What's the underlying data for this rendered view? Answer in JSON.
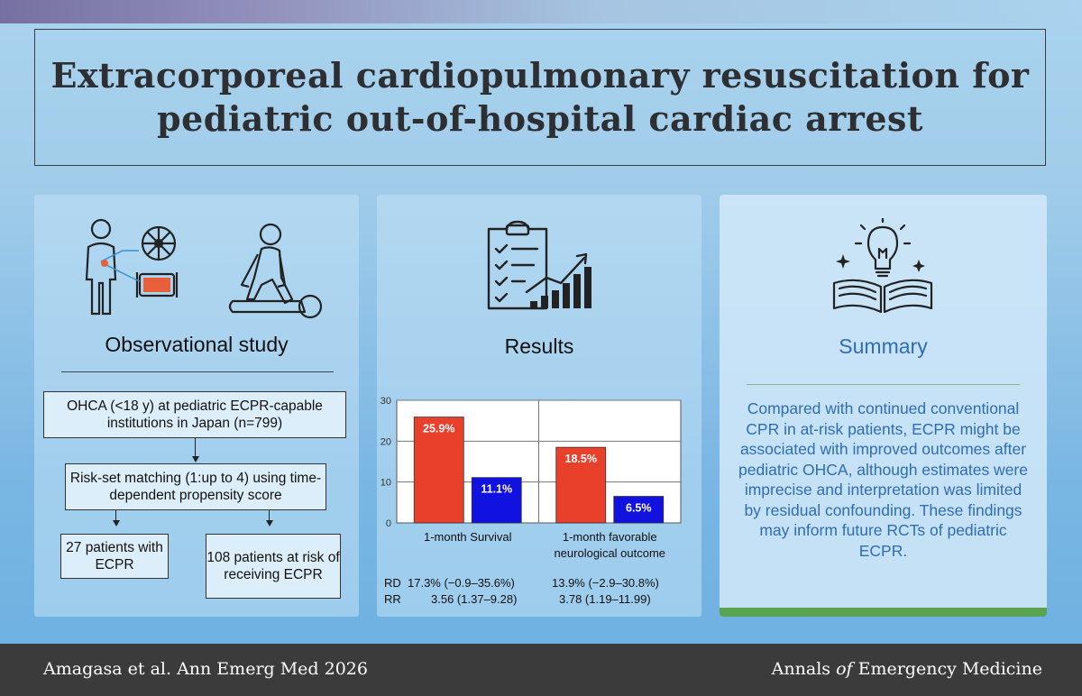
{
  "title": {
    "line1": "Extracorporeal cardiopulmonary resuscitation for",
    "line2": "pediatric out-of-hospital cardiac arrest"
  },
  "study": {
    "heading": "Observational study",
    "box1": "OHCA (<18 y) at pediatric ECPR-capable institutions in Japan (n=799)",
    "box2": "Risk-set matching (1:up to 4) using time-dependent propensity score",
    "box3": "27 patients with ECPR",
    "box4": "108 patients at risk of receiving ECPR",
    "icons": [
      "ecmo-patient-icon",
      "cpr-icon"
    ]
  },
  "results": {
    "heading": "Results",
    "rd_label": "RD",
    "rr_label": "RR",
    "rd_survival": "17.3% (−0.9–35.6%)",
    "rd_neuro": "13.9% (−2.9–30.8%)",
    "rr_survival": "3.56 (1.37–9.28)",
    "rr_neuro": "3.78 (1.19–11.99)",
    "icon": "checklist-growth-chart-icon"
  },
  "chart_data": {
    "type": "bar",
    "categories": [
      "1-month Survival",
      "1-month favorable\nneurological outcome"
    ],
    "series": [
      {
        "color": "#e8402a",
        "values": [
          25.9,
          18.5
        ],
        "labels": [
          "25.9%",
          "18.5%"
        ]
      },
      {
        "color": "#1212e0",
        "values": [
          11.1,
          6.5
        ],
        "labels": [
          "11.1%",
          "6.5%"
        ]
      }
    ],
    "yticks": [
      0,
      10,
      20,
      30
    ],
    "ylim": [
      0,
      30
    ],
    "grid": true,
    "legend": "none"
  },
  "summary": {
    "heading": "Summary",
    "text": "Compared with continued conventional CPR in at-risk patients, ECPR might be associated with improved outcomes after pediatric OHCA, although estimates were imprecise and interpretation was limited by residual confounding. These findings may inform future RCTs of pediatric ECPR.",
    "icon": "lightbulb-book-icon",
    "accent": "#5aa451",
    "text_color": "#2f6db4"
  },
  "footer": {
    "citation": "Amagasa et al. Ann Emerg Med 2026",
    "journal_pre": "Annals ",
    "journal_of": "of",
    "journal_post": " Emergency Medicine"
  }
}
